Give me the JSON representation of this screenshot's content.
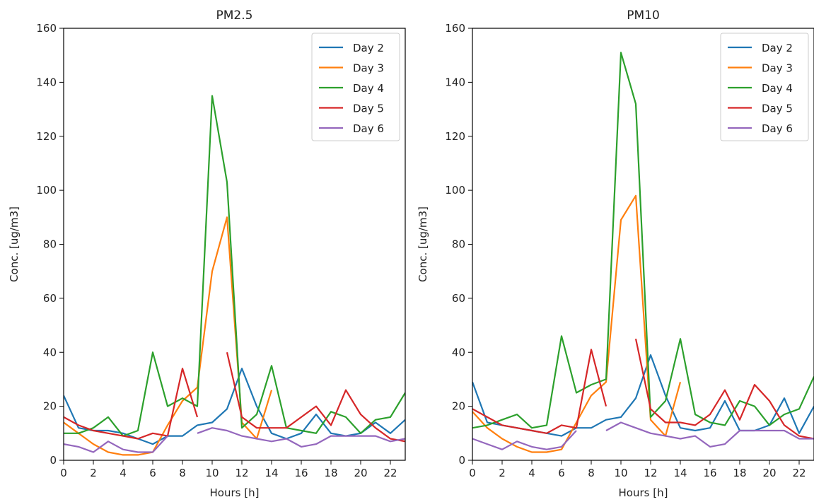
{
  "colors": {
    "Day 2": "#1f77b4",
    "Day 3": "#ff7f0e",
    "Day 4": "#2ca02c",
    "Day 5": "#d62728",
    "Day 6": "#9467bd"
  },
  "chart_data": [
    {
      "type": "line",
      "title": "PM2.5",
      "xlabel": "Hours [h]",
      "ylabel": "Conc. [ug/m3]",
      "xlim": [
        0,
        23
      ],
      "ylim": [
        0,
        160
      ],
      "xticks": [
        0,
        2,
        4,
        6,
        8,
        10,
        12,
        14,
        16,
        18,
        20,
        22
      ],
      "yticks": [
        0,
        20,
        40,
        60,
        80,
        100,
        120,
        140,
        160
      ],
      "grid": false,
      "legend": "top-right",
      "x": [
        0,
        1,
        2,
        3,
        4,
        5,
        6,
        7,
        8,
        9,
        10,
        11,
        12,
        13,
        14,
        15,
        16,
        17,
        18,
        19,
        20,
        21,
        22,
        23
      ],
      "series": [
        {
          "name": "Day 2",
          "values": [
            24,
            12,
            11,
            11,
            10,
            8,
            6,
            9,
            9,
            13,
            14,
            19,
            34,
            20,
            10,
            8,
            10,
            17,
            10,
            9,
            10,
            14,
            10,
            15
          ]
        },
        {
          "name": "Day 3",
          "values": [
            14,
            10,
            6,
            3,
            2,
            2,
            3,
            13,
            22,
            27,
            70,
            90,
            14,
            8,
            26,
            null,
            null,
            null,
            null,
            null,
            null,
            null,
            null,
            null
          ]
        },
        {
          "name": "Day 4",
          "values": [
            10,
            10,
            12,
            16,
            9,
            11,
            40,
            20,
            23,
            20,
            135,
            103,
            12,
            17,
            35,
            12,
            11,
            10,
            18,
            16,
            10,
            15,
            16,
            25
          ]
        },
        {
          "name": "Day 5",
          "values": [
            16,
            13,
            11,
            10,
            9,
            8,
            10,
            9,
            34,
            16,
            null,
            40,
            16,
            12,
            12,
            12,
            16,
            20,
            13,
            26,
            17,
            12,
            8,
            7
          ]
        },
        {
          "name": "Day 6",
          "values": [
            6,
            5,
            3,
            7,
            4,
            3,
            3,
            9,
            null,
            10,
            12,
            11,
            9,
            8,
            7,
            8,
            5,
            6,
            9,
            9,
            9,
            9,
            7,
            8
          ]
        }
      ]
    },
    {
      "type": "line",
      "title": "PM10",
      "xlabel": "Hours [h]",
      "ylabel": "Conc. [ug/m3]",
      "xlim": [
        0,
        23
      ],
      "ylim": [
        0,
        160
      ],
      "xticks": [
        0,
        2,
        4,
        6,
        8,
        10,
        12,
        14,
        16,
        18,
        20,
        22
      ],
      "yticks": [
        0,
        20,
        40,
        60,
        80,
        100,
        120,
        140,
        160
      ],
      "grid": false,
      "legend": "top-right",
      "x": [
        0,
        1,
        2,
        3,
        4,
        5,
        6,
        7,
        8,
        9,
        10,
        11,
        12,
        13,
        14,
        15,
        16,
        17,
        18,
        19,
        20,
        21,
        22,
        23
      ],
      "series": [
        {
          "name": "Day 2",
          "values": [
            29,
            14,
            13,
            12,
            11,
            10,
            9,
            12,
            12,
            15,
            16,
            23,
            39,
            24,
            12,
            11,
            12,
            22,
            11,
            11,
            13,
            23,
            10,
            20
          ]
        },
        {
          "name": "Day 3",
          "values": [
            18,
            12,
            8,
            5,
            3,
            3,
            4,
            14,
            24,
            29,
            89,
            98,
            15,
            9,
            29,
            null,
            null,
            null,
            null,
            null,
            null,
            null,
            null,
            null
          ]
        },
        {
          "name": "Day 4",
          "values": [
            12,
            13,
            15,
            17,
            12,
            13,
            46,
            25,
            28,
            30,
            151,
            132,
            16,
            22,
            45,
            17,
            14,
            13,
            22,
            20,
            13,
            17,
            19,
            31
          ]
        },
        {
          "name": "Day 5",
          "values": [
            19,
            16,
            13,
            12,
            11,
            10,
            13,
            12,
            41,
            20,
            null,
            45,
            19,
            14,
            14,
            13,
            17,
            26,
            15,
            28,
            22,
            13,
            9,
            8
          ]
        },
        {
          "name": "Day 6",
          "values": [
            8,
            6,
            4,
            7,
            5,
            4,
            5,
            11,
            null,
            11,
            14,
            12,
            10,
            9,
            8,
            9,
            5,
            6,
            11,
            11,
            11,
            11,
            8,
            8
          ]
        }
      ]
    }
  ]
}
